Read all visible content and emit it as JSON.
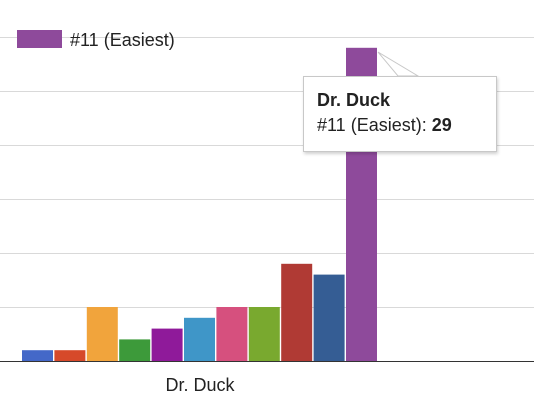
{
  "chart_data": {
    "type": "bar",
    "categories": [
      "Dr. Duck"
    ],
    "ylim": [
      0,
      30
    ],
    "grid": true,
    "legend": {
      "placement": "top-left",
      "entries": [
        {
          "label": "#11 (Easiest)",
          "color": "#8e4a9b"
        }
      ]
    },
    "series": [
      {
        "color": "#4468c8",
        "values": [
          1
        ]
      },
      {
        "color": "#d6492a",
        "values": [
          1
        ]
      },
      {
        "color": "#f1a43c",
        "values": [
          5
        ]
      },
      {
        "color": "#3d9a3a",
        "values": [
          2
        ]
      },
      {
        "color": "#8f1a9a",
        "values": [
          3
        ]
      },
      {
        "color": "#3f96c8",
        "values": [
          4
        ]
      },
      {
        "color": "#d6507e",
        "values": [
          5
        ]
      },
      {
        "color": "#79a92f",
        "values": [
          5
        ]
      },
      {
        "color": "#b03a34",
        "values": [
          9
        ]
      },
      {
        "color": "#355d94",
        "values": [
          8
        ]
      },
      {
        "name": "#11 (Easiest)",
        "color": "#8e4a9b",
        "values": [
          29
        ]
      }
    ]
  },
  "tooltip": {
    "title": "Dr. Duck",
    "label": "#11 (Easiest): ",
    "value": "29"
  }
}
